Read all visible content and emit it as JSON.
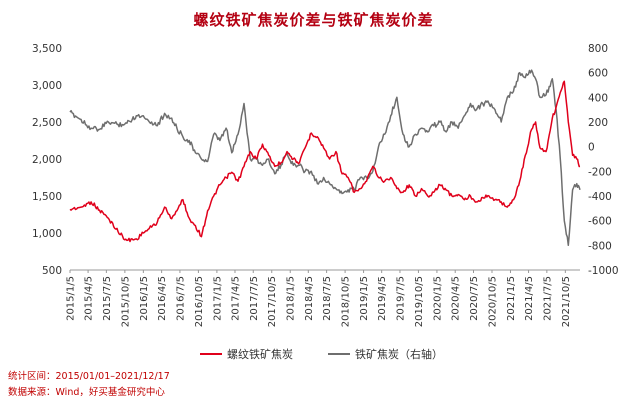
{
  "chart_data": {
    "type": "line",
    "title": "螺纹铁矿焦炭价差与铁矿焦炭价差",
    "left_axis": {
      "range": [
        500,
        3500
      ],
      "ticks": [
        "500",
        "1,000",
        "1,500",
        "2,000",
        "2,500",
        "3,000",
        "3,500"
      ]
    },
    "right_axis": {
      "range": [
        -1000,
        800
      ],
      "ticks": [
        "-1000",
        "-800",
        "-600",
        "-400",
        "-200",
        "0",
        "200",
        "400",
        "600",
        "800"
      ]
    },
    "x_ticks": [
      "2015/1/5",
      "2015/4/5",
      "2015/7/5",
      "2015/10/5",
      "2016/1/5",
      "2016/4/5",
      "2016/7/5",
      "2016/10/5",
      "2017/1/5",
      "2017/4/5",
      "2017/7/5",
      "2017/10/5",
      "2018/1/5",
      "2018/4/5",
      "2018/7/5",
      "2018/10/5",
      "2019/1/5",
      "2019/4/5",
      "2019/7/5",
      "2019/10/5",
      "2020/1/5",
      "2020/4/5",
      "2020/7/5",
      "2020/10/5",
      "2021/1/5",
      "2021/4/5",
      "2021/7/5",
      "2021/10/5"
    ],
    "grid": false,
    "legend_position": "bottom",
    "colors": {
      "series1": "#e0001b",
      "series2": "#6e6e6e"
    },
    "series": [
      {
        "name": "螺纹铁矿焦炭",
        "axis": "left",
        "x": [
          "2015/1/5",
          "2015/3/1",
          "2015/4/20",
          "2015/6/1",
          "2015/7/15",
          "2015/9/1",
          "2015/10/15",
          "2015/12/1",
          "2016/1/5",
          "2016/2/15",
          "2016/3/15",
          "2016/4/20",
          "2016/5/20",
          "2016/6/20",
          "2016/7/20",
          "2016/8/20",
          "2016/9/20",
          "2016/10/20",
          "2016/11/20",
          "2016/12/20",
          "2017/1/20",
          "2017/2/20",
          "2017/3/20",
          "2017/4/20",
          "2017/5/20",
          "2017/6/20",
          "2017/7/20",
          "2017/8/20",
          "2017/9/20",
          "2017/10/20",
          "2017/11/20",
          "2017/12/20",
          "2018/1/20",
          "2018/2/20",
          "2018/3/20",
          "2018/4/20",
          "2018/5/20",
          "2018/6/20",
          "2018/7/20",
          "2018/8/20",
          "2018/9/20",
          "2018/10/20",
          "2018/11/20",
          "2018/12/20",
          "2019/1/20",
          "2019/2/20",
          "2019/3/20",
          "2019/4/20",
          "2019/5/20",
          "2019/6/20",
          "2019/7/20",
          "2019/8/20",
          "2019/9/20",
          "2019/10/20",
          "2019/11/20",
          "2019/12/20",
          "2020/1/20",
          "2020/2/20",
          "2020/3/20",
          "2020/4/20",
          "2020/5/20",
          "2020/6/20",
          "2020/7/20",
          "2020/8/20",
          "2020/9/20",
          "2020/10/20",
          "2020/11/20",
          "2020/12/20",
          "2021/1/20",
          "2021/2/20",
          "2021/3/20",
          "2021/4/20",
          "2021/5/10",
          "2021/6/1",
          "2021/7/1",
          "2021/8/1",
          "2021/8/20",
          "2021/9/10",
          "2021/9/30",
          "2021/10/20",
          "2021/11/10",
          "2021/12/1",
          "2021/12/17"
        ],
        "values": [
          1320,
          1350,
          1420,
          1310,
          1200,
          1020,
          900,
          920,
          1000,
          1080,
          1150,
          1350,
          1200,
          1300,
          1450,
          1200,
          1100,
          950,
          1300,
          1500,
          1650,
          1750,
          1820,
          1700,
          1900,
          2100,
          2000,
          2200,
          2050,
          1900,
          1950,
          2100,
          2000,
          1950,
          2150,
          2350,
          2300,
          2150,
          2000,
          2100,
          1800,
          1750,
          1550,
          1600,
          1700,
          1900,
          1750,
          1700,
          1750,
          1600,
          1550,
          1650,
          1500,
          1600,
          1500,
          1550,
          1650,
          1580,
          1500,
          1520,
          1450,
          1500,
          1420,
          1480,
          1500,
          1450,
          1420,
          1350,
          1450,
          1700,
          2050,
          2400,
          2500,
          2150,
          2100,
          2550,
          2700,
          2900,
          3050,
          2500,
          2050,
          2000,
          1900
        ]
      },
      {
        "name": "铁矿焦炭（右轴）",
        "axis": "right",
        "x": [
          "2015/1/5",
          "2015/3/1",
          "2015/4/20",
          "2015/6/1",
          "2015/7/15",
          "2015/9/1",
          "2015/10/15",
          "2015/12/1",
          "2016/1/5",
          "2016/2/15",
          "2016/3/15",
          "2016/4/20",
          "2016/5/20",
          "2016/6/20",
          "2016/7/20",
          "2016/8/20",
          "2016/9/20",
          "2016/10/20",
          "2016/11/20",
          "2016/12/20",
          "2017/1/20",
          "2017/2/20",
          "2017/3/20",
          "2017/4/20",
          "2017/5/20",
          "2017/6/20",
          "2017/7/20",
          "2017/8/20",
          "2017/9/20",
          "2017/10/20",
          "2017/11/20",
          "2017/12/20",
          "2018/1/20",
          "2018/2/20",
          "2018/3/20",
          "2018/4/20",
          "2018/5/20",
          "2018/6/20",
          "2018/7/20",
          "2018/8/20",
          "2018/9/20",
          "2018/10/20",
          "2018/11/20",
          "2018/12/20",
          "2019/1/20",
          "2019/2/20",
          "2019/3/20",
          "2019/4/20",
          "2019/5/20",
          "2019/6/20",
          "2019/7/20",
          "2019/8/20",
          "2019/9/20",
          "2019/10/20",
          "2019/11/20",
          "2019/12/20",
          "2020/1/20",
          "2020/2/20",
          "2020/3/20",
          "2020/4/20",
          "2020/5/20",
          "2020/6/20",
          "2020/7/20",
          "2020/8/20",
          "2020/9/20",
          "2020/10/20",
          "2020/11/20",
          "2020/12/20",
          "2021/1/20",
          "2021/2/20",
          "2021/3/20",
          "2021/4/20",
          "2021/5/10",
          "2021/6/1",
          "2021/7/1",
          "2021/8/1",
          "2021/8/20",
          "2021/9/10",
          "2021/9/30",
          "2021/10/20",
          "2021/11/10",
          "2021/12/1",
          "2021/12/17"
        ],
        "values": [
          280,
          220,
          150,
          140,
          200,
          180,
          190,
          250,
          250,
          200,
          170,
          270,
          230,
          150,
          80,
          50,
          -50,
          -100,
          -120,
          100,
          50,
          150,
          -50,
          100,
          350,
          -100,
          -100,
          -150,
          -100,
          -220,
          -150,
          -50,
          -150,
          -150,
          -200,
          -200,
          -300,
          -250,
          -300,
          -340,
          -380,
          -350,
          -350,
          -250,
          -250,
          -200,
          0,
          100,
          250,
          400,
          100,
          0,
          100,
          150,
          120,
          170,
          200,
          120,
          200,
          150,
          250,
          350,
          300,
          350,
          350,
          300,
          200,
          400,
          450,
          600,
          560,
          620,
          550,
          400,
          420,
          550,
          300,
          -100,
          -600,
          -800,
          -350,
          -300,
          -350
        ]
      }
    ]
  },
  "legend": {
    "item1": "螺纹铁矿焦炭",
    "item2": "铁矿焦炭（右轴）"
  },
  "notes": {
    "range": "统计区间：2015/01/01–2021/12/17",
    "source": "数据来源：Wind，好买基金研究中心"
  }
}
